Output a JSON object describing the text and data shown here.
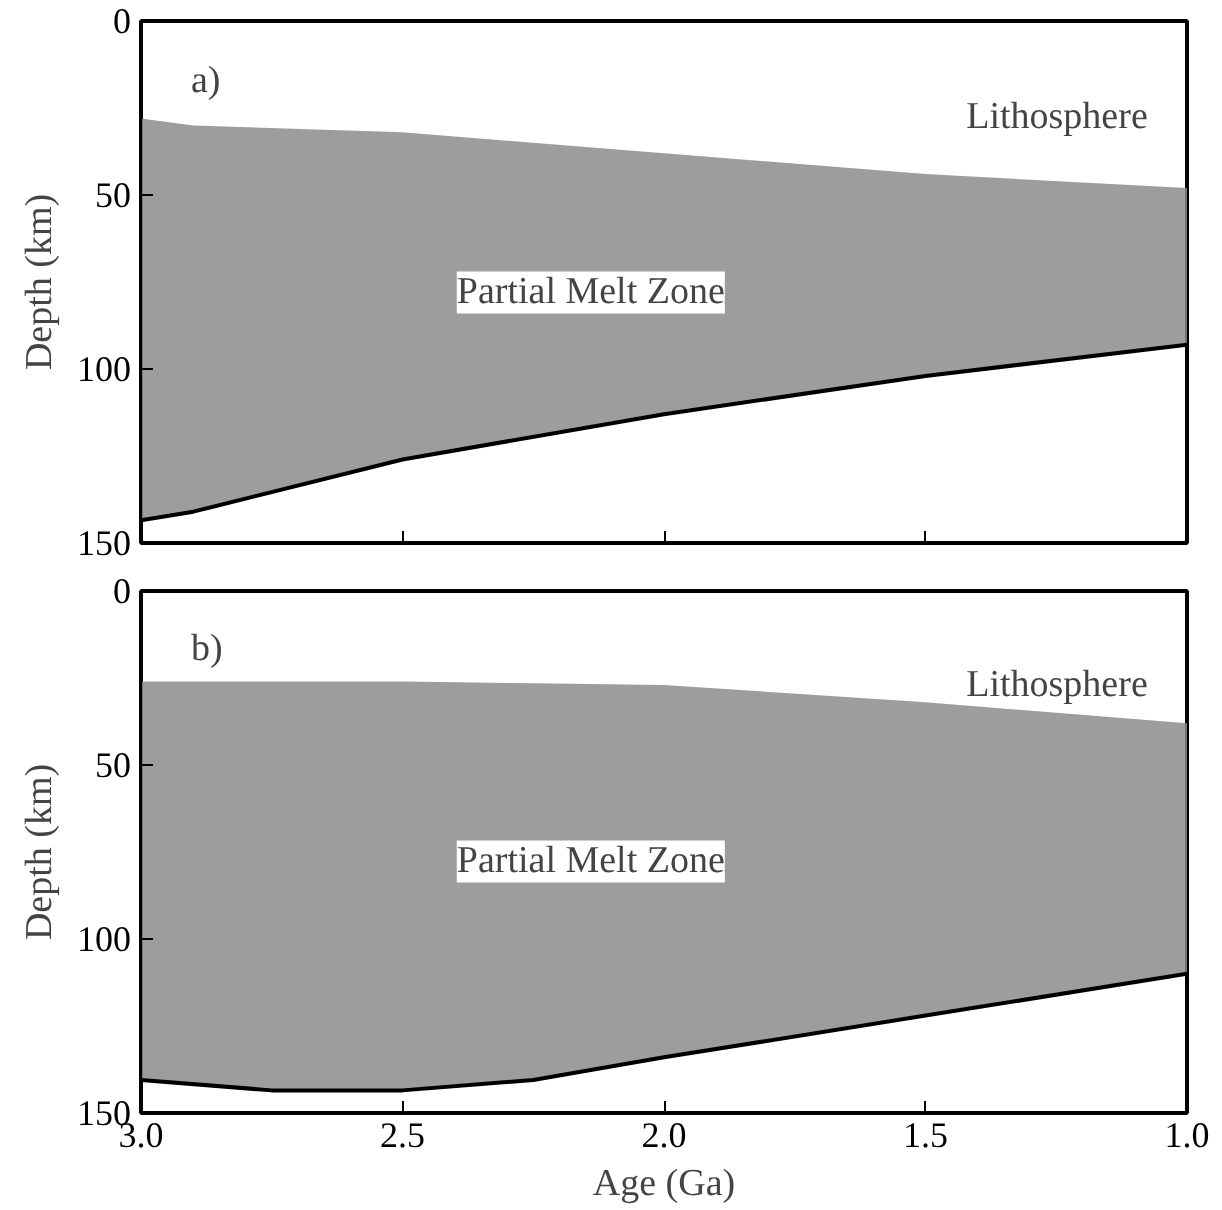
{
  "chart_data": [
    {
      "type": "line",
      "ylabel": "Depth (km)",
      "xlim": [
        3.0,
        1.0
      ],
      "ylim": [
        150,
        0
      ],
      "xticks": [
        {
          "value": 3.0,
          "label": null
        },
        {
          "value": 2.5,
          "label": null
        },
        {
          "value": 2.0,
          "label": null
        },
        {
          "value": 1.5,
          "label": null
        },
        {
          "value": 1.0,
          "label": null
        }
      ],
      "yticks": [
        0,
        50,
        100,
        150
      ],
      "tick_labels": "y",
      "grid": false,
      "series": [
        {
          "color": "#000000",
          "x": [
            3.0,
            2.9,
            2.5,
            2.0,
            1.5,
            1.0
          ],
          "values": [
            143.5,
            141,
            126,
            113,
            102,
            93
          ],
          "lower": [
            28,
            30,
            32,
            38,
            44,
            48
          ],
          "upper": [
            143.5,
            141,
            126,
            113,
            102,
            93
          ]
        }
      ],
      "annotations": [
        "a)",
        "Lithosphere",
        "Partial Melt Zone"
      ]
    },
    {
      "type": "line",
      "xlabel": "Age (Ga)",
      "ylabel": "Depth (km)",
      "xlim": [
        3.0,
        1.0
      ],
      "ylim": [
        150,
        0
      ],
      "xticks": [
        {
          "value": 3.0,
          "label": "3.0"
        },
        {
          "value": 2.5,
          "label": "2.5"
        },
        {
          "value": 2.0,
          "label": "2.0"
        },
        {
          "value": 1.5,
          "label": "1.5"
        },
        {
          "value": 1.0,
          "label": "1.0"
        }
      ],
      "yticks": [
        0,
        50,
        100,
        150
      ],
      "grid": false,
      "series": [
        {
          "color": "#000000",
          "x": [
            3.0,
            2.75,
            2.5,
            2.25,
            2.0,
            1.5,
            1.0
          ],
          "values": [
            140.5,
            143.5,
            143.5,
            140.5,
            134,
            122,
            110
          ],
          "lower": [
            26,
            26,
            26,
            26.5,
            27,
            32,
            38
          ],
          "upper": [
            140.5,
            143.5,
            143.5,
            140.5,
            134,
            122,
            110
          ]
        }
      ],
      "annotations": [
        "b)",
        "Lithosphere",
        "Partial Melt Zone"
      ]
    }
  ]
}
